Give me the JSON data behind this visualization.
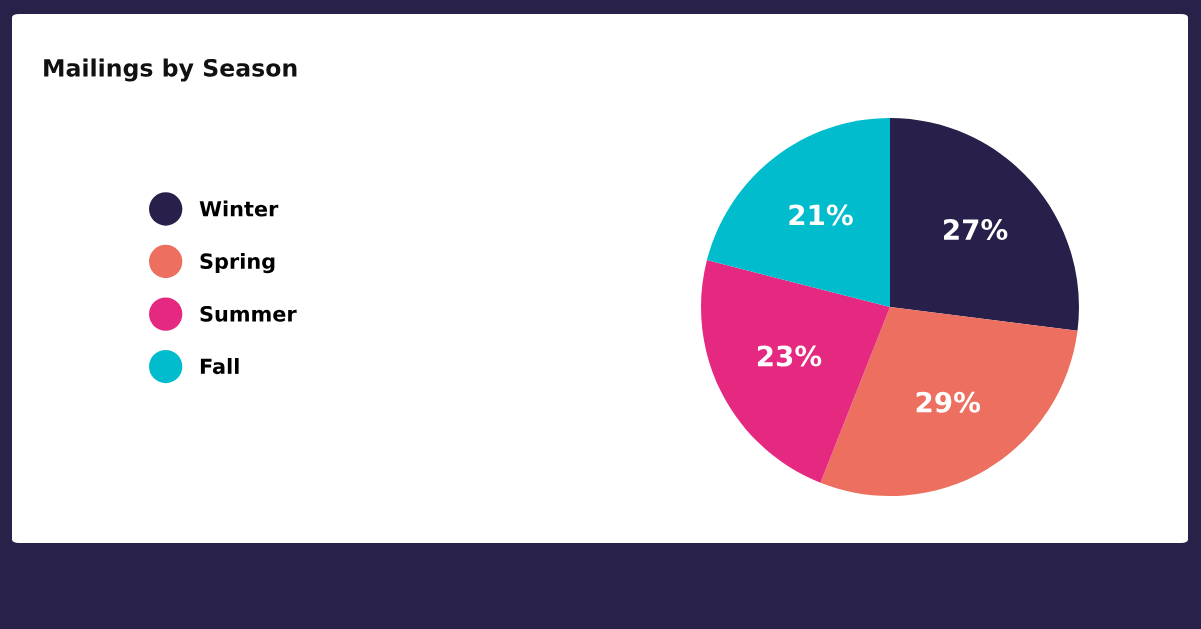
{
  "chart_data": {
    "type": "pie",
    "title": "Mailings by Season",
    "categories": [
      "Winter",
      "Spring",
      "Summer",
      "Fall"
    ],
    "values": [
      27,
      29,
      23,
      21
    ],
    "colors": [
      "#28204a",
      "#ec6f60",
      "#e52880",
      "#00bccc"
    ],
    "value_labels": [
      "27%",
      "29%",
      "23%",
      "21%"
    ],
    "legend": "left"
  }
}
